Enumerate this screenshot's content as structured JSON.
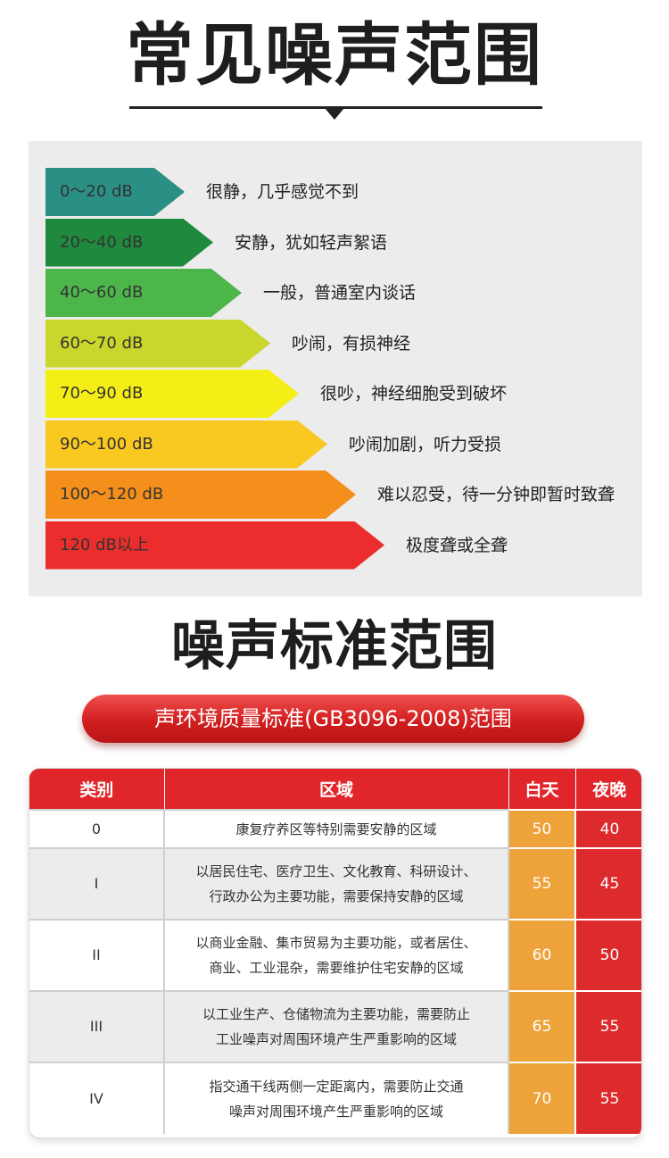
{
  "title1": "常见噪声范围",
  "levels": [
    {
      "range": "0～20 dB",
      "desc": "很静，几乎感觉不到",
      "color": "#2a8f84"
    },
    {
      "range": "20～40 dB",
      "desc": "安静，犹如轻声絮语",
      "color": "#1f8a3d"
    },
    {
      "range": "40～60 dB",
      "desc": "一般，普通室内谈话",
      "color": "#4db64a"
    },
    {
      "range": "60～70 dB",
      "desc": "吵闹，有损神经",
      "color": "#c9d62b"
    },
    {
      "range": "70～90 dB",
      "desc": "很吵，神经细胞受到破坏",
      "color": "#f5ee16"
    },
    {
      "range": "90～100 dB",
      "desc": "吵闹加剧，听力受损",
      "color": "#f9c821"
    },
    {
      "range": "100～120 dB",
      "desc": "难以忍受，待一分钟即暂时致聋",
      "color": "#f58f1c"
    },
    {
      "range": "120 dB以上",
      "desc": "极度聋或全聋",
      "color": "#ec2d2d"
    }
  ],
  "title2": "噪声标准范围",
  "standard_title": "声环境质量标准(GB3096-2008)范围",
  "table": {
    "headers": {
      "category": "类别",
      "area": "区域",
      "day": "白天",
      "night": "夜晚"
    },
    "rows": [
      {
        "category": "0",
        "area_lines": [
          "康复疗养区等特别需要安静的区域"
        ],
        "day": "50",
        "night": "40"
      },
      {
        "category": "I",
        "area_lines": [
          "以居民住宅、医疗卫生、文化教育、科研设计、",
          "行政办公为主要功能，需要保持安静的区域"
        ],
        "day": "55",
        "night": "45"
      },
      {
        "category": "II",
        "area_lines": [
          "以商业金融、集市贸易为主要功能，或者居住、",
          "商业、工业混杂，需要维护住宅安静的区域"
        ],
        "day": "60",
        "night": "50"
      },
      {
        "category": "III",
        "area_lines": [
          "以工业生产、仓储物流为主要功能，需要防止",
          "工业噪声对周围环境产生严重影响的区域"
        ],
        "day": "65",
        "night": "55"
      },
      {
        "category": "IV",
        "area_lines": [
          "指交通干线两侧一定距离内，需要防止交通",
          "噪声对周围环境产生严重影响的区域"
        ],
        "day": "70",
        "night": "55"
      }
    ]
  }
}
